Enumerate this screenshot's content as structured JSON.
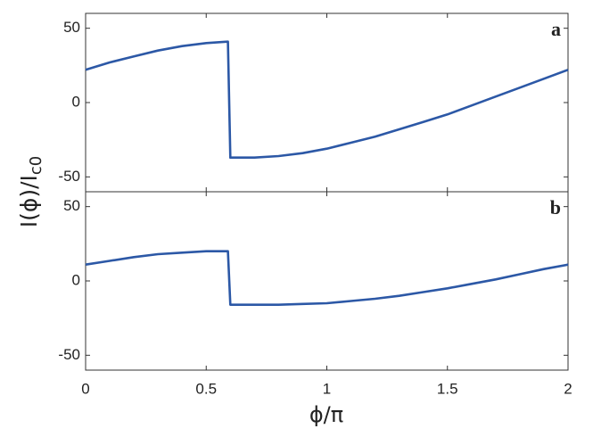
{
  "chart_data": [
    {
      "type": "line",
      "annotation": "a",
      "ylabel": "I(ϕ)/I",
      "ylabel_subscript": "c0",
      "color": "#2c58a6",
      "x": [
        0,
        0.1,
        0.2,
        0.3,
        0.4,
        0.5,
        0.59,
        0.6,
        0.7,
        0.8,
        0.9,
        1.0,
        1.1,
        1.2,
        1.3,
        1.4,
        1.5,
        1.6,
        1.7,
        1.8,
        1.9,
        2.0
      ],
      "values": [
        22,
        27,
        31,
        35,
        38,
        40,
        41,
        -37,
        -37,
        -36,
        -34,
        -31,
        -27,
        -23,
        -18,
        -13,
        -8,
        -2,
        4,
        10,
        16,
        22
      ],
      "xlim": [
        0,
        2
      ],
      "xticks": [
        0,
        0.5,
        1,
        1.5,
        2
      ],
      "ylim": [
        -60,
        60
      ],
      "yticks": [
        -50,
        0,
        50
      ]
    },
    {
      "type": "line",
      "annotation": "b",
      "xlabel": "ϕ/π",
      "color": "#2c58a6",
      "x": [
        0,
        0.1,
        0.2,
        0.3,
        0.4,
        0.5,
        0.59,
        0.6,
        0.7,
        0.8,
        0.9,
        1.0,
        1.1,
        1.2,
        1.3,
        1.4,
        1.5,
        1.6,
        1.7,
        1.8,
        1.9,
        2.0
      ],
      "values": [
        11,
        13.5,
        16,
        18,
        19,
        20,
        20,
        -16,
        -16,
        -16,
        -15.5,
        -15,
        -13.5,
        -12,
        -10,
        -7.5,
        -5,
        -2,
        1,
        4.5,
        8,
        11
      ],
      "xlim": [
        0,
        2
      ],
      "xticks": [
        0,
        0.5,
        1,
        1.5,
        2
      ],
      "ylim": [
        -60,
        60
      ],
      "yticks": [
        -50,
        0,
        50
      ]
    }
  ]
}
